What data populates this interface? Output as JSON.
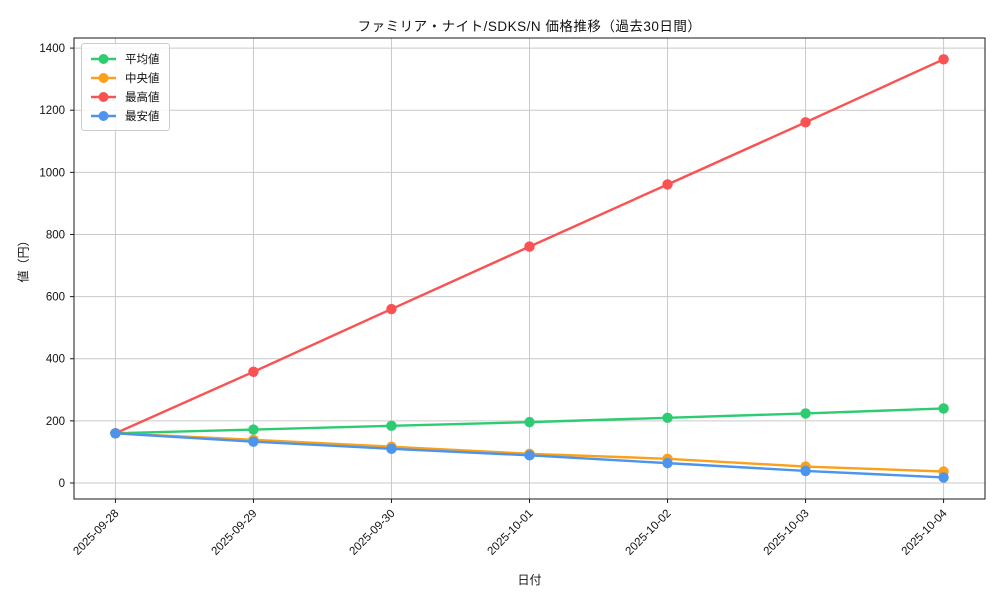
{
  "chart": {
    "title": "ファミリア・ナイト/SDKS/N 価格推移（過去30日間）",
    "xlabel": "日付",
    "ylabel": "値（円）"
  },
  "chart_data": {
    "type": "line",
    "title": "ファミリア・ナイト/SDKS/N 価格推移（過去30日間）",
    "xlabel": "日付",
    "ylabel": "値（円）",
    "categories": [
      "2025-09-28",
      "2025-09-29",
      "2025-09-30",
      "2025-10-01",
      "2025-10-02",
      "2025-10-03",
      "2025-10-04"
    ],
    "series": [
      {
        "key": "mean",
        "name": "平均値",
        "color": "#2ecc71",
        "values": [
          160,
          172,
          184,
          196,
          210,
          224,
          240
        ]
      },
      {
        "key": "median",
        "name": "中央値",
        "color": "#f9a11b",
        "values": [
          160,
          139,
          117,
          94,
          78,
          53,
          37
        ]
      },
      {
        "key": "max",
        "name": "最高値",
        "color": "#fa5252",
        "values": [
          160,
          358,
          560,
          761,
          961,
          1161,
          1364
        ]
      },
      {
        "key": "min",
        "name": "最安値",
        "color": "#4d94ec",
        "values": [
          160,
          133,
          110,
          89,
          64,
          39,
          18
        ]
      }
    ],
    "yticks": [
      0,
      200,
      400,
      600,
      800,
      1000,
      1200,
      1400
    ],
    "ylim": [
      -51.5,
      1432.5
    ],
    "grid": true,
    "legend_position": "upper left",
    "marker": "circle",
    "colors": {
      "grid": "#c9c9c9",
      "spine": "#1a1a1a",
      "text": "#111111"
    }
  }
}
